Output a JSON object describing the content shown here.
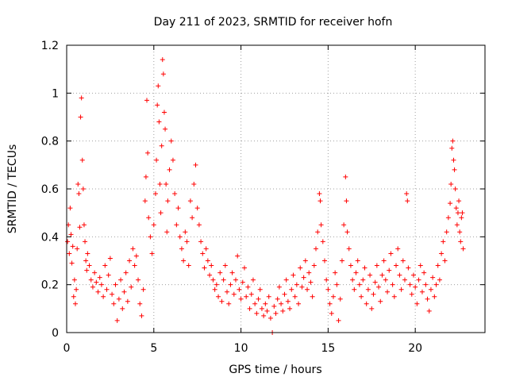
{
  "chart_data": {
    "type": "scatter",
    "title": "Day 211 of 2023, SRMTID for receiver hofn",
    "xlabel": "GPS time / hours",
    "ylabel": "SRMTID / TECUs",
    "xlim": [
      0,
      24
    ],
    "ylim": [
      0,
      1.2
    ],
    "xticks": [
      0,
      5,
      10,
      15,
      20
    ],
    "xtick_labels": [
      "0",
      "5",
      "10",
      "15",
      "20"
    ],
    "yticks": [
      0,
      0.2,
      0.4,
      0.6,
      0.8,
      1.0,
      1.2
    ],
    "ytick_labels": [
      "0",
      "0.2",
      "0.4",
      "0.6",
      "0.8",
      "1",
      "1.2"
    ],
    "grid": true,
    "marker": "+",
    "color": "#ff0000",
    "series": [
      {
        "name": "hofn",
        "points": [
          [
            0.05,
            0.38
          ],
          [
            0.1,
            0.45
          ],
          [
            0.15,
            0.33
          ],
          [
            0.2,
            0.52
          ],
          [
            0.25,
            0.41
          ],
          [
            0.3,
            0.29
          ],
          [
            0.35,
            0.36
          ],
          [
            0.4,
            0.15
          ],
          [
            0.45,
            0.22
          ],
          [
            0.5,
            0.12
          ],
          [
            0.55,
            0.18
          ],
          [
            0.6,
            0.35
          ],
          [
            0.65,
            0.62
          ],
          [
            0.7,
            0.58
          ],
          [
            0.75,
            0.44
          ],
          [
            0.8,
            0.9
          ],
          [
            0.85,
            0.98
          ],
          [
            0.9,
            0.72
          ],
          [
            0.95,
            0.6
          ],
          [
            1.0,
            0.45
          ],
          [
            1.05,
            0.38
          ],
          [
            1.1,
            0.3
          ],
          [
            1.15,
            0.26
          ],
          [
            1.2,
            0.33
          ],
          [
            1.3,
            0.28
          ],
          [
            1.4,
            0.22
          ],
          [
            1.5,
            0.19
          ],
          [
            1.6,
            0.25
          ],
          [
            1.7,
            0.21
          ],
          [
            1.8,
            0.17
          ],
          [
            1.9,
            0.23
          ],
          [
            2.0,
            0.2
          ],
          [
            2.1,
            0.15
          ],
          [
            2.2,
            0.28
          ],
          [
            2.3,
            0.18
          ],
          [
            2.4,
            0.24
          ],
          [
            2.5,
            0.31
          ],
          [
            2.6,
            0.16
          ],
          [
            2.7,
            0.12
          ],
          [
            2.8,
            0.2
          ],
          [
            2.9,
            0.05
          ],
          [
            3.0,
            0.14
          ],
          [
            3.1,
            0.22
          ],
          [
            3.2,
            0.1
          ],
          [
            3.3,
            0.17
          ],
          [
            3.4,
            0.25
          ],
          [
            3.5,
            0.13
          ],
          [
            3.6,
            0.3
          ],
          [
            3.7,
            0.19
          ],
          [
            3.8,
            0.35
          ],
          [
            3.9,
            0.28
          ],
          [
            4.0,
            0.32
          ],
          [
            4.1,
            0.22
          ],
          [
            4.2,
            0.12
          ],
          [
            4.3,
            0.07
          ],
          [
            4.4,
            0.18
          ],
          [
            4.5,
            0.55
          ],
          [
            4.55,
            0.65
          ],
          [
            4.6,
            0.97
          ],
          [
            4.65,
            0.75
          ],
          [
            4.7,
            0.48
          ],
          [
            4.8,
            0.4
          ],
          [
            4.9,
            0.33
          ],
          [
            5.0,
            0.45
          ],
          [
            5.1,
            0.58
          ],
          [
            5.15,
            0.72
          ],
          [
            5.2,
            0.95
          ],
          [
            5.25,
            1.03
          ],
          [
            5.3,
            0.88
          ],
          [
            5.35,
            0.62
          ],
          [
            5.4,
            0.5
          ],
          [
            5.45,
            0.78
          ],
          [
            5.5,
            1.14
          ],
          [
            5.55,
            1.08
          ],
          [
            5.6,
            0.92
          ],
          [
            5.65,
            0.85
          ],
          [
            5.7,
            0.62
          ],
          [
            5.75,
            0.42
          ],
          [
            5.8,
            0.55
          ],
          [
            5.9,
            0.68
          ],
          [
            6.0,
            0.8
          ],
          [
            6.1,
            0.72
          ],
          [
            6.2,
            0.58
          ],
          [
            6.3,
            0.45
          ],
          [
            6.4,
            0.52
          ],
          [
            6.5,
            0.4
          ],
          [
            6.6,
            0.35
          ],
          [
            6.7,
            0.3
          ],
          [
            6.8,
            0.42
          ],
          [
            6.9,
            0.38
          ],
          [
            7.0,
            0.28
          ],
          [
            7.1,
            0.55
          ],
          [
            7.2,
            0.48
          ],
          [
            7.3,
            0.62
          ],
          [
            7.4,
            0.7
          ],
          [
            7.5,
            0.52
          ],
          [
            7.6,
            0.45
          ],
          [
            7.7,
            0.38
          ],
          [
            7.8,
            0.33
          ],
          [
            7.9,
            0.27
          ],
          [
            8.0,
            0.35
          ],
          [
            8.1,
            0.3
          ],
          [
            8.2,
            0.24
          ],
          [
            8.3,
            0.28
          ],
          [
            8.4,
            0.22
          ],
          [
            8.5,
            0.18
          ],
          [
            8.6,
            0.2
          ],
          [
            8.7,
            0.15
          ],
          [
            8.8,
            0.25
          ],
          [
            8.9,
            0.13
          ],
          [
            9.0,
            0.22
          ],
          [
            9.1,
            0.28
          ],
          [
            9.2,
            0.17
          ],
          [
            9.3,
            0.12
          ],
          [
            9.4,
            0.2
          ],
          [
            9.5,
            0.25
          ],
          [
            9.6,
            0.16
          ],
          [
            9.7,
            0.22
          ],
          [
            9.8,
            0.32
          ],
          [
            9.9,
            0.18
          ],
          [
            10.0,
            0.14
          ],
          [
            10.1,
            0.21
          ],
          [
            10.2,
            0.27
          ],
          [
            10.3,
            0.15
          ],
          [
            10.4,
            0.19
          ],
          [
            10.5,
            0.1
          ],
          [
            10.6,
            0.16
          ],
          [
            10.7,
            0.22
          ],
          [
            10.8,
            0.12
          ],
          [
            10.9,
            0.08
          ],
          [
            11.0,
            0.14
          ],
          [
            11.1,
            0.18
          ],
          [
            11.2,
            0.1
          ],
          [
            11.3,
            0.07
          ],
          [
            11.4,
            0.12
          ],
          [
            11.5,
            0.09
          ],
          [
            11.6,
            0.15
          ],
          [
            11.7,
            0.06
          ],
          [
            11.8,
            0.0
          ],
          [
            11.9,
            0.11
          ],
          [
            12.0,
            0.08
          ],
          [
            12.1,
            0.14
          ],
          [
            12.2,
            0.19
          ],
          [
            12.3,
            0.12
          ],
          [
            12.4,
            0.09
          ],
          [
            12.5,
            0.16
          ],
          [
            12.6,
            0.22
          ],
          [
            12.7,
            0.13
          ],
          [
            12.8,
            0.1
          ],
          [
            12.9,
            0.18
          ],
          [
            13.0,
            0.24
          ],
          [
            13.1,
            0.15
          ],
          [
            13.2,
            0.2
          ],
          [
            13.3,
            0.12
          ],
          [
            13.4,
            0.27
          ],
          [
            13.5,
            0.19
          ],
          [
            13.6,
            0.23
          ],
          [
            13.7,
            0.3
          ],
          [
            13.8,
            0.18
          ],
          [
            13.9,
            0.25
          ],
          [
            14.0,
            0.21
          ],
          [
            14.1,
            0.15
          ],
          [
            14.2,
            0.28
          ],
          [
            14.3,
            0.35
          ],
          [
            14.4,
            0.42
          ],
          [
            14.5,
            0.58
          ],
          [
            14.55,
            0.55
          ],
          [
            14.6,
            0.45
          ],
          [
            14.7,
            0.38
          ],
          [
            14.8,
            0.3
          ],
          [
            14.9,
            0.22
          ],
          [
            15.0,
            0.18
          ],
          [
            15.1,
            0.12
          ],
          [
            15.2,
            0.08
          ],
          [
            15.3,
            0.15
          ],
          [
            15.4,
            0.25
          ],
          [
            15.5,
            0.2
          ],
          [
            15.6,
            0.05
          ],
          [
            15.7,
            0.14
          ],
          [
            15.8,
            0.3
          ],
          [
            15.9,
            0.45
          ],
          [
            16.0,
            0.65
          ],
          [
            16.05,
            0.55
          ],
          [
            16.1,
            0.42
          ],
          [
            16.2,
            0.35
          ],
          [
            16.3,
            0.28
          ],
          [
            16.4,
            0.22
          ],
          [
            16.5,
            0.18
          ],
          [
            16.6,
            0.25
          ],
          [
            16.7,
            0.3
          ],
          [
            16.8,
            0.2
          ],
          [
            16.9,
            0.15
          ],
          [
            17.0,
            0.22
          ],
          [
            17.1,
            0.27
          ],
          [
            17.2,
            0.12
          ],
          [
            17.3,
            0.18
          ],
          [
            17.4,
            0.24
          ],
          [
            17.5,
            0.1
          ],
          [
            17.6,
            0.16
          ],
          [
            17.7,
            0.21
          ],
          [
            17.8,
            0.28
          ],
          [
            17.9,
            0.19
          ],
          [
            18.0,
            0.13
          ],
          [
            18.1,
            0.24
          ],
          [
            18.2,
            0.3
          ],
          [
            18.3,
            0.22
          ],
          [
            18.4,
            0.17
          ],
          [
            18.5,
            0.26
          ],
          [
            18.6,
            0.33
          ],
          [
            18.7,
            0.2
          ],
          [
            18.8,
            0.15
          ],
          [
            18.9,
            0.28
          ],
          [
            19.0,
            0.35
          ],
          [
            19.1,
            0.24
          ],
          [
            19.2,
            0.18
          ],
          [
            19.3,
            0.3
          ],
          [
            19.4,
            0.22
          ],
          [
            19.5,
            0.58
          ],
          [
            19.55,
            0.55
          ],
          [
            19.6,
            0.27
          ],
          [
            19.7,
            0.2
          ],
          [
            19.8,
            0.16
          ],
          [
            19.9,
            0.24
          ],
          [
            20.0,
            0.19
          ],
          [
            20.1,
            0.12
          ],
          [
            20.2,
            0.22
          ],
          [
            20.3,
            0.28
          ],
          [
            20.4,
            0.17
          ],
          [
            20.5,
            0.25
          ],
          [
            20.6,
            0.2
          ],
          [
            20.7,
            0.14
          ],
          [
            20.8,
            0.09
          ],
          [
            20.9,
            0.18
          ],
          [
            21.0,
            0.23
          ],
          [
            21.1,
            0.15
          ],
          [
            21.2,
            0.2
          ],
          [
            21.3,
            0.28
          ],
          [
            21.4,
            0.22
          ],
          [
            21.5,
            0.33
          ],
          [
            21.6,
            0.38
          ],
          [
            21.7,
            0.3
          ],
          [
            21.8,
            0.42
          ],
          [
            21.9,
            0.48
          ],
          [
            22.0,
            0.54
          ],
          [
            22.05,
            0.62
          ],
          [
            22.1,
            0.77
          ],
          [
            22.15,
            0.8
          ],
          [
            22.2,
            0.72
          ],
          [
            22.25,
            0.68
          ],
          [
            22.3,
            0.6
          ],
          [
            22.35,
            0.52
          ],
          [
            22.4,
            0.45
          ],
          [
            22.45,
            0.5
          ],
          [
            22.5,
            0.55
          ],
          [
            22.55,
            0.42
          ],
          [
            22.6,
            0.38
          ],
          [
            22.65,
            0.48
          ],
          [
            22.7,
            0.5
          ],
          [
            22.75,
            0.35
          ]
        ]
      }
    ]
  }
}
